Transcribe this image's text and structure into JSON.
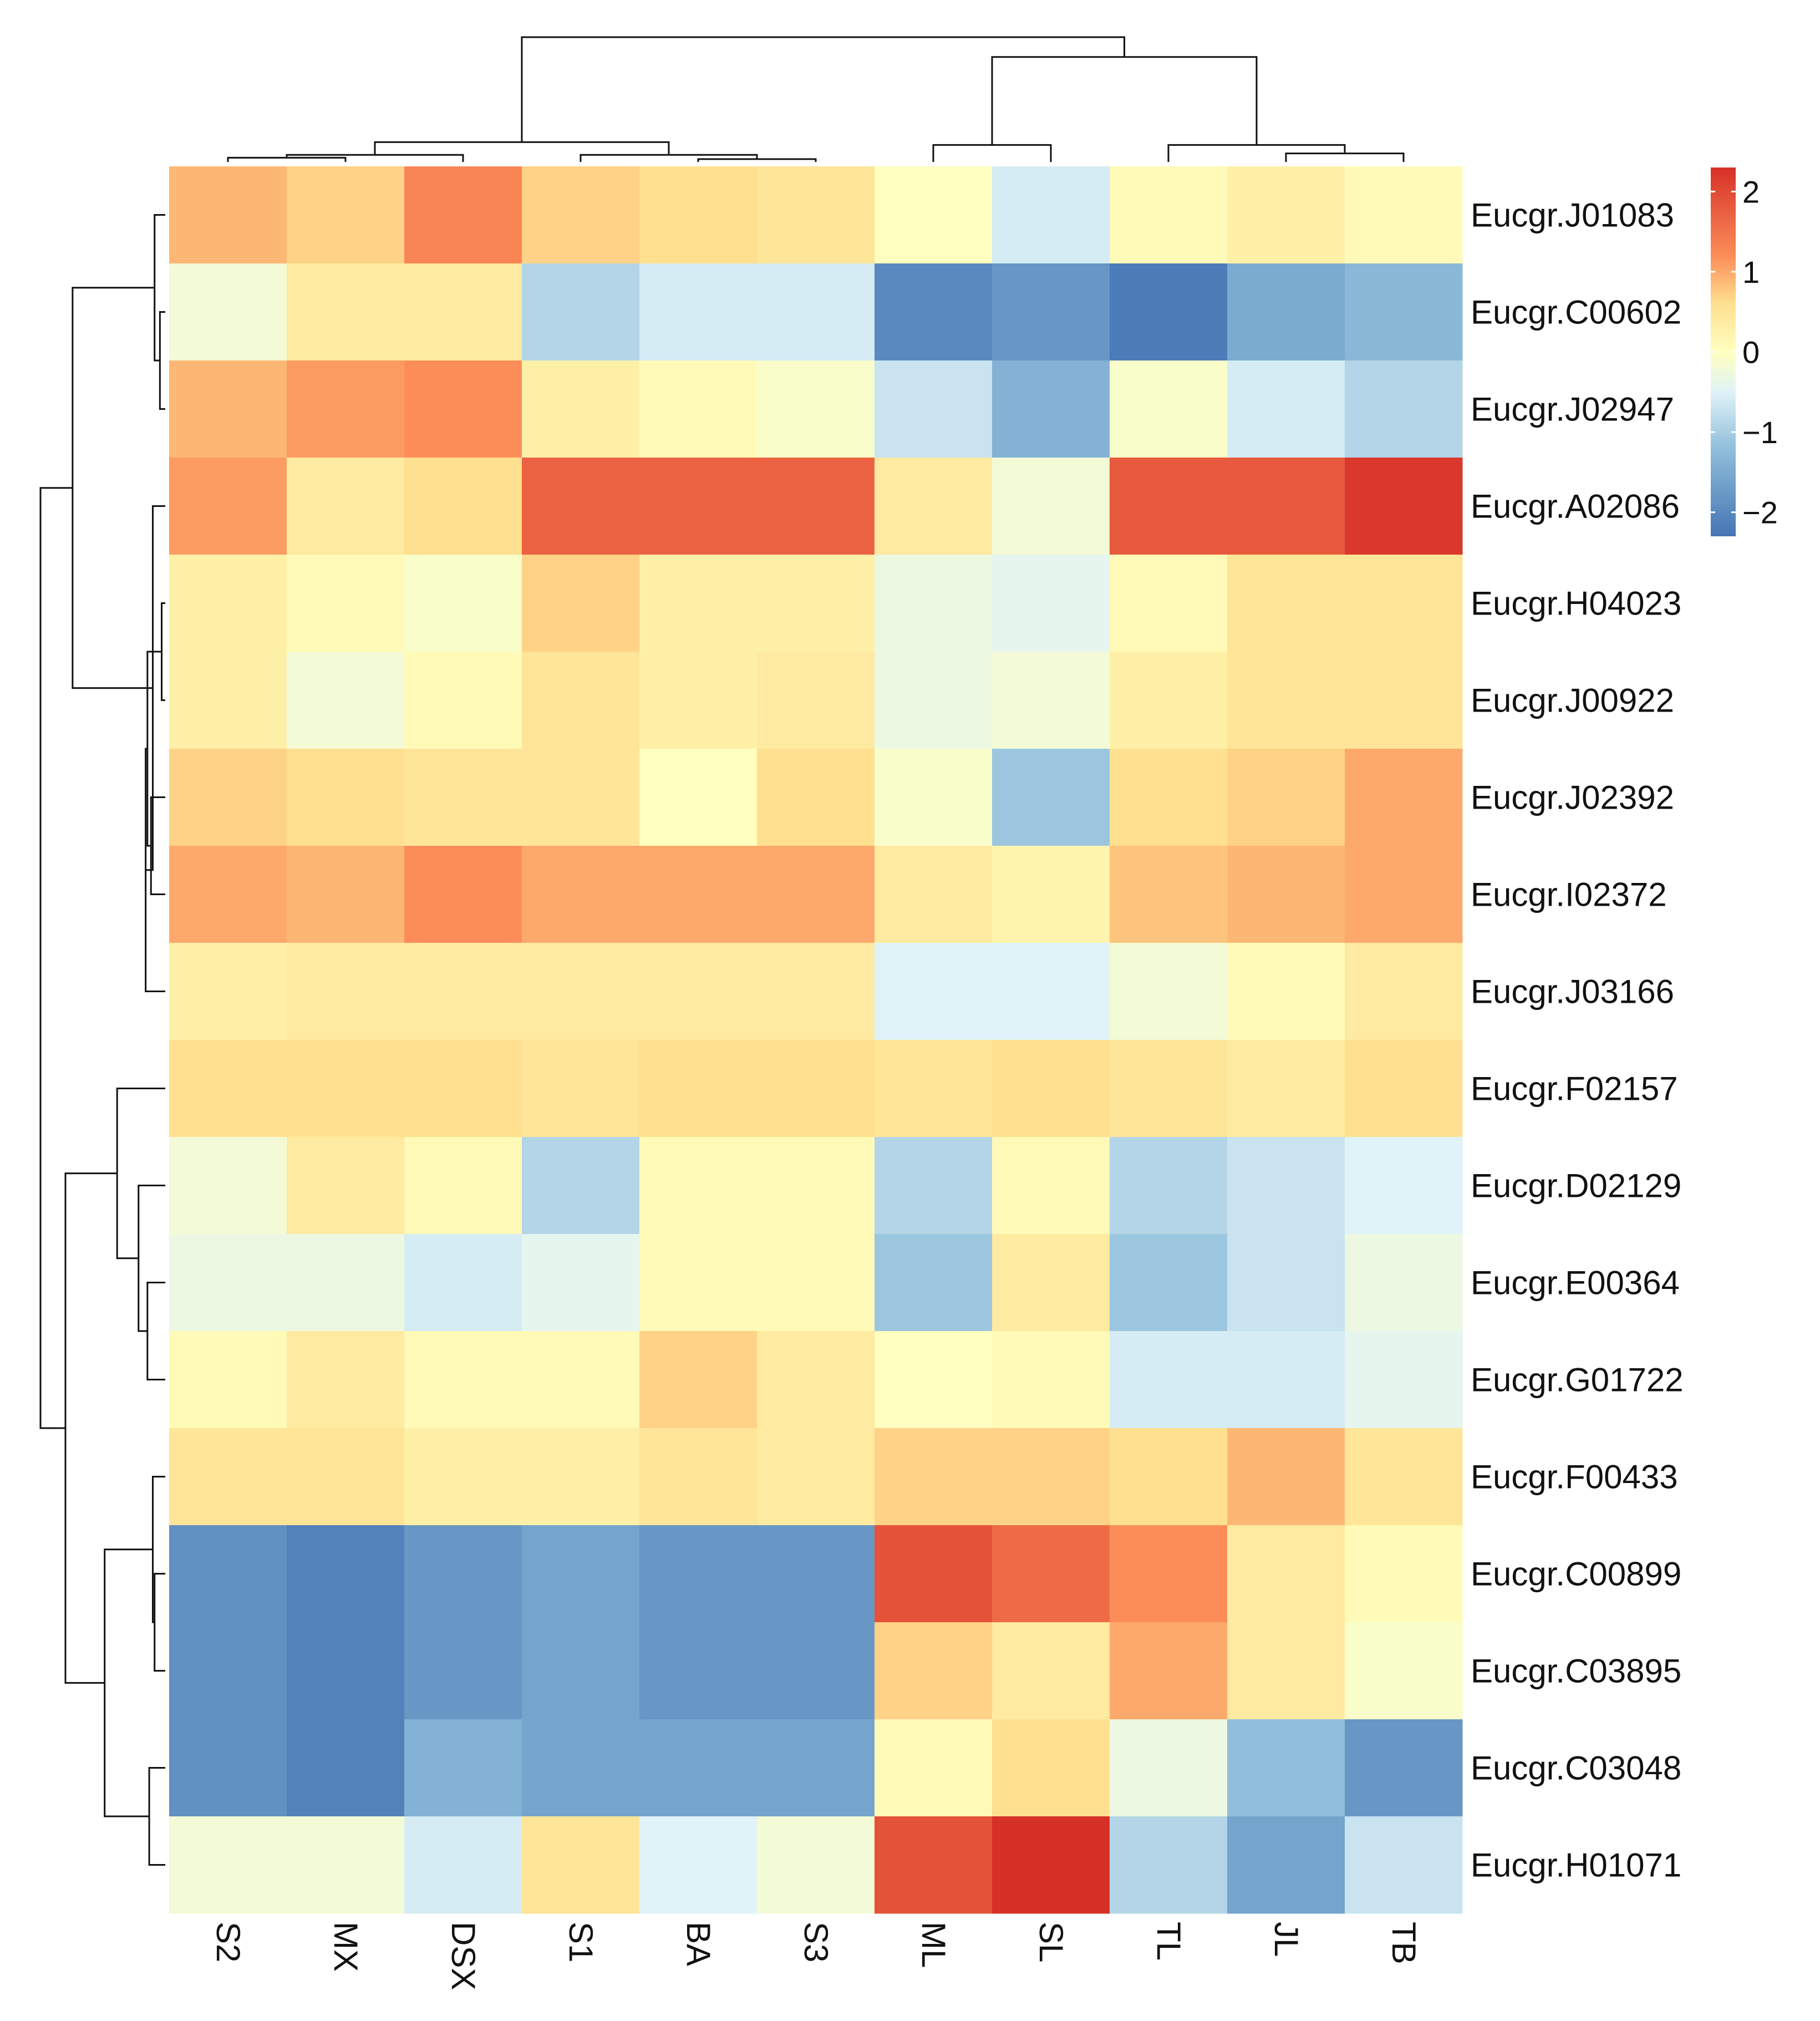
{
  "chart_data": {
    "type": "heatmap",
    "title": "",
    "clustered": true,
    "columns": [
      "S2",
      "MX",
      "DSX",
      "S1",
      "BA",
      "S3",
      "ML",
      "SL",
      "TL",
      "JL",
      "TB"
    ],
    "rows": [
      "Eucgr.J01083",
      "Eucgr.C00602",
      "Eucgr.J02947",
      "Eucgr.A02086",
      "Eucgr.H04023",
      "Eucgr.J00922",
      "Eucgr.J02392",
      "Eucgr.I02372",
      "Eucgr.J03166",
      "Eucgr.F02157",
      "Eucgr.D02129",
      "Eucgr.E00364",
      "Eucgr.G01722",
      "Eucgr.F00433",
      "Eucgr.C00899",
      "Eucgr.C03895",
      "Eucgr.C03048",
      "Eucgr.H01071"
    ],
    "values": [
      [
        0.9,
        0.7,
        1.3,
        0.7,
        0.6,
        0.5,
        0.0,
        -0.6,
        0.1,
        0.3,
        0.1
      ],
      [
        -0.2,
        0.4,
        0.4,
        -0.9,
        -0.6,
        -0.6,
        -2.0,
        -1.8,
        -2.2,
        -1.5,
        -1.3
      ],
      [
        0.9,
        1.1,
        1.2,
        0.3,
        0.1,
        -0.1,
        -0.7,
        -1.4,
        -0.1,
        -0.6,
        -0.9
      ],
      [
        1.1,
        0.4,
        0.6,
        1.7,
        1.7,
        1.7,
        0.4,
        -0.2,
        1.8,
        1.8,
        2.2
      ],
      [
        0.3,
        0.1,
        -0.1,
        0.7,
        0.3,
        0.3,
        -0.3,
        -0.4,
        0.1,
        0.5,
        0.5
      ],
      [
        0.3,
        -0.2,
        0.1,
        0.5,
        0.3,
        0.4,
        -0.3,
        -0.2,
        0.3,
        0.5,
        0.5
      ],
      [
        0.7,
        0.6,
        0.5,
        0.5,
        0.0,
        0.6,
        -0.1,
        -1.1,
        0.6,
        0.7,
        1.0
      ],
      [
        1.0,
        0.9,
        1.2,
        1.0,
        1.0,
        1.0,
        0.4,
        0.2,
        0.8,
        0.9,
        1.0
      ],
      [
        0.3,
        0.4,
        0.4,
        0.4,
        0.4,
        0.4,
        -0.5,
        -0.5,
        -0.2,
        0.1,
        0.4
      ],
      [
        0.6,
        0.6,
        0.6,
        0.5,
        0.6,
        0.6,
        0.5,
        0.6,
        0.5,
        0.4,
        0.6
      ],
      [
        -0.2,
        0.4,
        0.1,
        -0.9,
        0.1,
        0.1,
        -0.9,
        0.1,
        -0.9,
        -0.7,
        -0.5
      ],
      [
        -0.3,
        -0.3,
        -0.6,
        -0.4,
        0.1,
        0.1,
        -1.1,
        0.4,
        -1.1,
        -0.7,
        -0.3
      ],
      [
        0.1,
        0.4,
        0.1,
        0.1,
        0.7,
        0.4,
        0.0,
        0.1,
        -0.6,
        -0.6,
        -0.4
      ],
      [
        0.5,
        0.5,
        0.3,
        0.3,
        0.5,
        0.4,
        0.7,
        0.7,
        0.6,
        0.9,
        0.5
      ],
      [
        -1.9,
        -2.1,
        -1.8,
        -1.6,
        -1.8,
        -1.8,
        1.9,
        1.6,
        1.2,
        0.4,
        0.1
      ],
      [
        -1.9,
        -2.1,
        -1.8,
        -1.6,
        -1.8,
        -1.8,
        0.7,
        0.4,
        1.0,
        0.4,
        -0.1
      ],
      [
        -1.9,
        -2.1,
        -1.4,
        -1.6,
        -1.6,
        -1.6,
        0.1,
        0.6,
        -0.3,
        -1.2,
        -1.8
      ],
      [
        -0.2,
        -0.2,
        -0.6,
        0.5,
        -0.5,
        -0.2,
        1.9,
        2.3,
        -0.9,
        -1.6,
        -0.7
      ]
    ],
    "color_scale": {
      "min": -2.3,
      "max": 2.3,
      "stops": [
        {
          "value": -2.3,
          "color": "#4575b4"
        },
        {
          "value": -1.2,
          "color": "#91bfdb"
        },
        {
          "value": -0.5,
          "color": "#e0f3f8"
        },
        {
          "value": 0.0,
          "color": "#ffffbf"
        },
        {
          "value": 0.6,
          "color": "#fee090"
        },
        {
          "value": 1.2,
          "color": "#fc8d59"
        },
        {
          "value": 2.3,
          "color": "#d73027"
        }
      ]
    },
    "legend": {
      "position": "right",
      "ticks": [
        2,
        1,
        0,
        -1,
        -2
      ],
      "tick_labels": [
        "2",
        "1",
        "0",
        "−1",
        "−2"
      ]
    },
    "row_dendrogram": {
      "order": [
        0,
        1,
        2,
        3,
        4,
        5,
        6,
        7,
        8,
        9,
        10,
        11,
        12,
        13,
        14,
        15,
        16,
        17
      ],
      "merges": [
        [
          -2,
          -3,
          0.03
        ],
        [
          -1,
          1,
          0.06
        ],
        [
          -5,
          -6,
          0.02
        ],
        [
          -7,
          -8,
          0.08
        ],
        [
          3,
          4,
          0.1
        ],
        [
          -9,
          5,
          0.11
        ],
        [
          -4,
          6,
          0.07
        ],
        [
          2,
          7,
          0.52
        ],
        [
          -12,
          -13,
          0.1
        ],
        [
          -11,
          9,
          0.15
        ],
        [
          -10,
          10,
          0.27
        ],
        [
          -15,
          -16,
          0.06
        ],
        [
          -14,
          12,
          0.07
        ],
        [
          -17,
          -18,
          0.09
        ],
        [
          13,
          14,
          0.34
        ],
        [
          11,
          15,
          0.56
        ],
        [
          8,
          16,
          0.7
        ]
      ]
    },
    "column_dendrogram": {
      "order": [
        0,
        1,
        2,
        3,
        4,
        5,
        6,
        7,
        8,
        9,
        10
      ],
      "merges": [
        [
          -1,
          -2,
          0.03
        ],
        [
          1,
          -3,
          0.05
        ],
        [
          -5,
          -6,
          0.02
        ],
        [
          -4,
          3,
          0.05
        ],
        [
          2,
          4,
          0.14
        ],
        [
          -7,
          -8,
          0.12
        ],
        [
          -10,
          -11,
          0.06
        ],
        [
          -9,
          7,
          0.12
        ],
        [
          6,
          8,
          0.74
        ],
        [
          5,
          9,
          0.88
        ]
      ]
    }
  }
}
